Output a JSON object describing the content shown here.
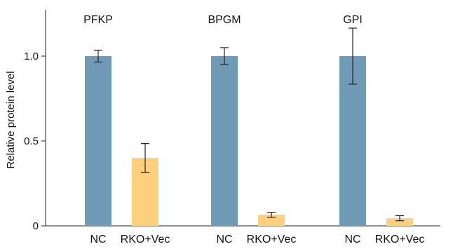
{
  "chart_data": {
    "type": "bar",
    "ylabel": "Relative protein level",
    "ylim": [
      0,
      1.25
    ],
    "yticks": [
      {
        "value": 0,
        "label": "0"
      },
      {
        "value": 0.5,
        "label": "0.5"
      },
      {
        "value": 1.0,
        "label": "1.0"
      }
    ],
    "grid": false,
    "legend": "none",
    "colors": {
      "NC": "#6f9bb6",
      "RKO+Vec": "#fdd07d"
    },
    "groups": [
      {
        "title": "PFKP",
        "bars": [
          {
            "label": "NC",
            "value": 1.0,
            "error": 0.035
          },
          {
            "label": "RKO+Vec",
            "value": 0.4,
            "error": 0.085
          }
        ]
      },
      {
        "title": "BPGM",
        "bars": [
          {
            "label": "NC",
            "value": 1.0,
            "error": 0.05
          },
          {
            "label": "RKO+Vec",
            "value": 0.065,
            "error": 0.015
          }
        ]
      },
      {
        "title": "GPI",
        "bars": [
          {
            "label": "NC",
            "value": 1.0,
            "error": 0.165
          },
          {
            "label": "RKO+Vec",
            "value": 0.045,
            "error": 0.015
          }
        ]
      }
    ]
  }
}
